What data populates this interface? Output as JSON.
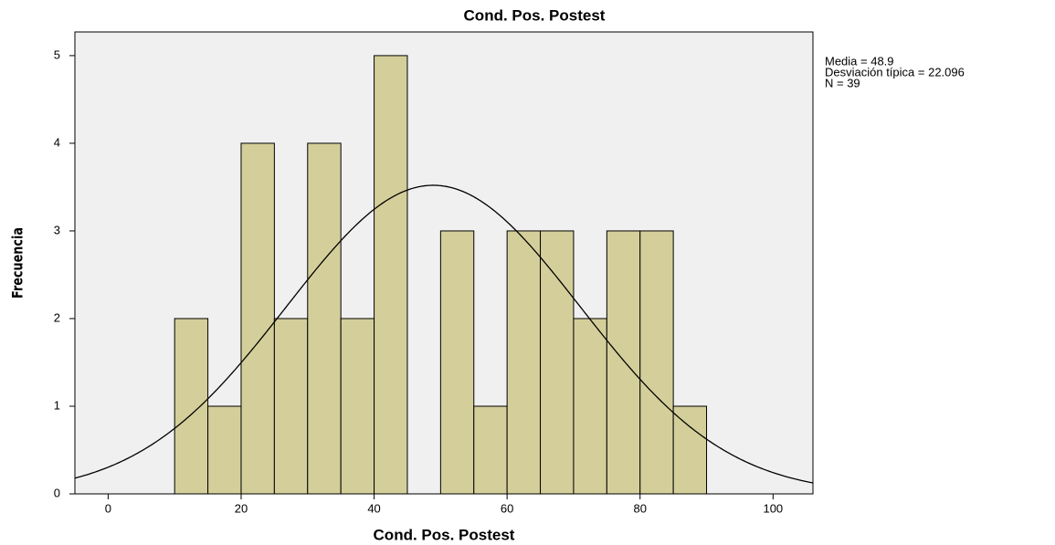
{
  "chart_data": {
    "type": "histogram",
    "title": "Cond. Pos. Postest",
    "x_label": "Cond. Pos. Postest",
    "y_label": "Frecuencia",
    "bins": [
      10,
      15,
      20,
      25,
      30,
      35,
      40,
      45,
      50,
      55,
      60,
      65,
      70,
      75,
      80,
      85,
      90
    ],
    "values": [
      2,
      1,
      4,
      2,
      4,
      2,
      5,
      0,
      3,
      1,
      3,
      3,
      2,
      3,
      3,
      1
    ],
    "color": "#d4cf9a",
    "xlim": [
      -5,
      106
    ],
    "xticks": [
      0,
      20,
      40,
      60,
      80,
      100
    ],
    "ylim": [
      0,
      5.27
    ],
    "yticks": [
      0,
      1,
      2,
      3,
      4,
      5
    ],
    "stats": [
      {
        "value": 48.9,
        "label": "Media = 48.9"
      },
      {
        "value": 22.096,
        "label": "Desviación típica = 22.096"
      },
      {
        "value": 39,
        "label": "N = 39"
      }
    ],
    "normal_curve": true
  }
}
